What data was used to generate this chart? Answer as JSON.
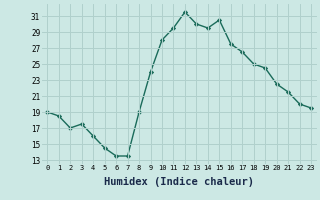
{
  "x": [
    0,
    1,
    2,
    3,
    4,
    5,
    6,
    7,
    8,
    9,
    10,
    11,
    12,
    13,
    14,
    15,
    16,
    17,
    18,
    19,
    20,
    21,
    22,
    23
  ],
  "y": [
    19.0,
    18.5,
    17.0,
    17.5,
    16.0,
    14.5,
    13.5,
    13.5,
    19.0,
    24.0,
    28.0,
    29.5,
    31.5,
    30.0,
    29.5,
    30.5,
    27.5,
    26.5,
    25.0,
    24.5,
    22.5,
    21.5,
    20.0,
    19.5
  ],
  "line_color": "#1a6b5a",
  "marker": "D",
  "markersize": 2.2,
  "linewidth": 1.0,
  "bg_color": "#cce8e4",
  "grid_color": "#b0d0cc",
  "xlabel": "Humidex (Indice chaleur)",
  "xlabel_fontsize": 7.5,
  "ytick_labels": [
    13,
    15,
    17,
    19,
    21,
    23,
    25,
    27,
    29,
    31
  ],
  "xtick_labels": [
    0,
    1,
    2,
    3,
    4,
    5,
    6,
    7,
    8,
    9,
    10,
    11,
    12,
    13,
    14,
    15,
    16,
    17,
    18,
    19,
    20,
    21,
    22,
    23
  ],
  "ylim": [
    12.5,
    32.5
  ],
  "xlim": [
    -0.5,
    23.5
  ]
}
